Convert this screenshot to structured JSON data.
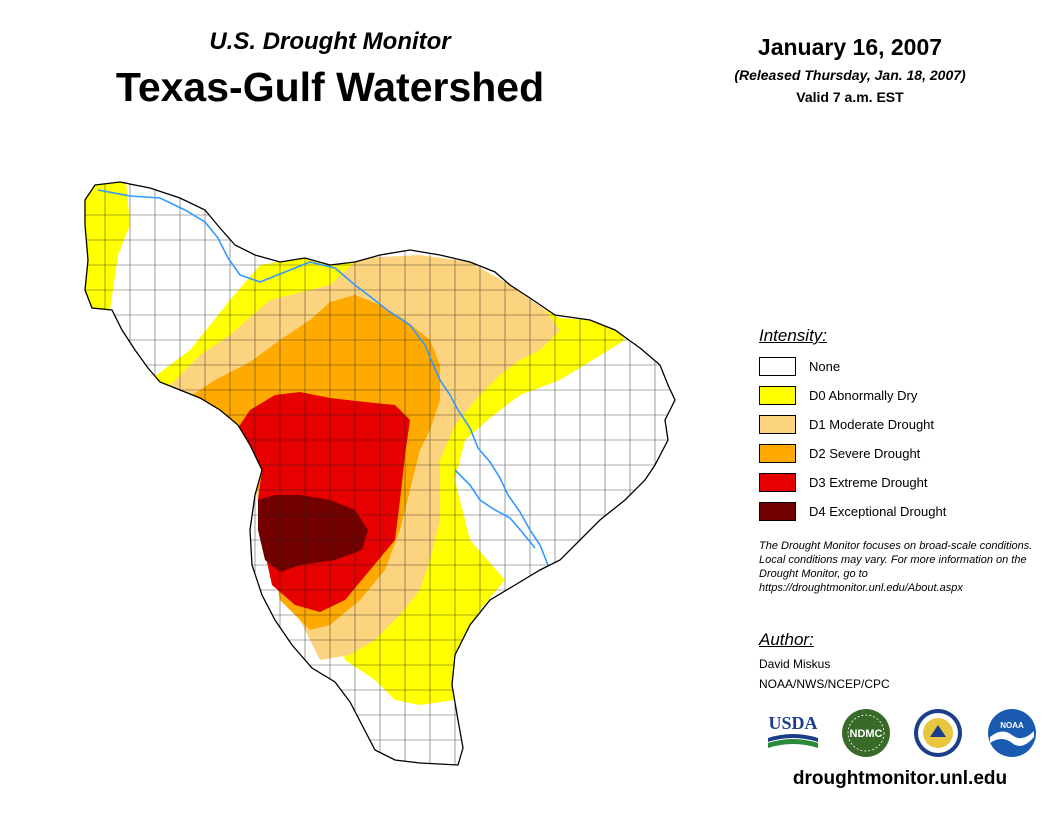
{
  "header": {
    "subtitle": "U.S. Drought Monitor",
    "title": "Texas-Gulf Watershed",
    "date": "January 16, 2007",
    "released": "(Released Thursday, Jan. 18, 2007)",
    "valid": "Valid 7 a.m. EST"
  },
  "legend": {
    "title": "Intensity:",
    "items": [
      {
        "label": "None",
        "color": "#ffffff"
      },
      {
        "label": "D0 Abnormally Dry",
        "color": "#ffff00"
      },
      {
        "label": "D1 Moderate Drought",
        "color": "#fcd37f"
      },
      {
        "label": "D2 Severe Drought",
        "color": "#ffaa00"
      },
      {
        "label": "D3 Extreme Drought",
        "color": "#e60000"
      },
      {
        "label": "D4 Exceptional Drought",
        "color": "#730000"
      }
    ]
  },
  "note": "The Drought Monitor focuses on broad-scale conditions. Local conditions may vary. For more information on the Drought Monitor, go to https://droughtmonitor.unl.edu/About.aspx",
  "author": {
    "heading": "Author:",
    "name": "David Miskus",
    "org": "NOAA/NWS/NCEP/CPC"
  },
  "logos": {
    "usda": "USDA",
    "ndmc": "NDMC",
    "noaa": "NOAA"
  },
  "site_url": "droughtmonitor.unl.edu"
}
